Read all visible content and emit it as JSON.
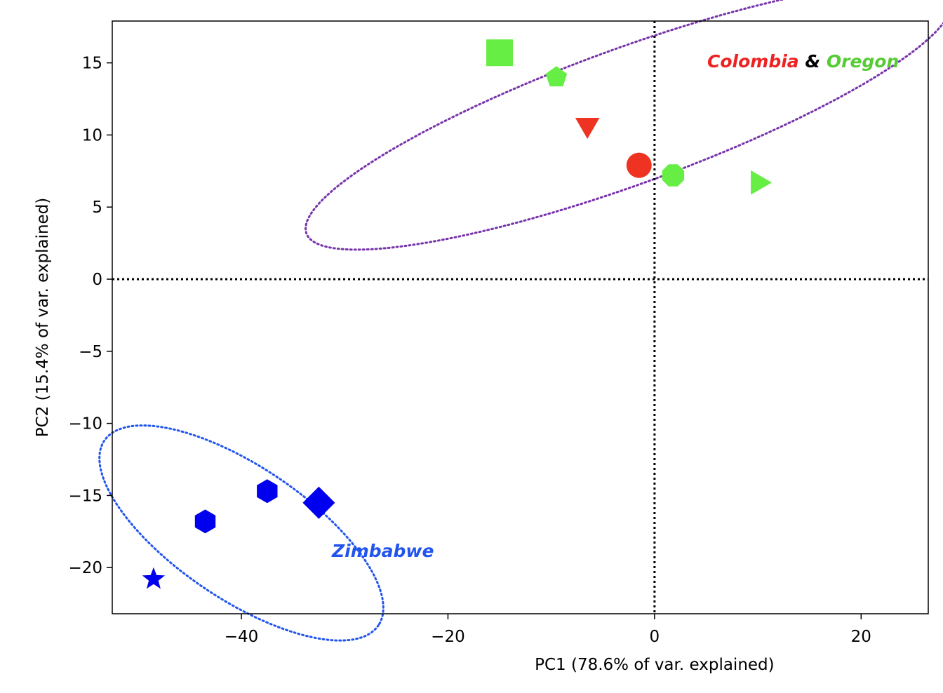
{
  "chart_data": {
    "type": "scatter",
    "title": "",
    "xlabel": "PC1 (78.6% of var. explained)",
    "ylabel": "PC2 (15.4% of var. explained)",
    "xlim": [
      -52.5,
      26.5
    ],
    "ylim": [
      -23.2,
      17.9
    ],
    "x_ticks": [
      -40,
      -20,
      0,
      20
    ],
    "y_ticks": [
      15,
      10,
      5,
      0,
      -5,
      -10,
      -15,
      -20
    ],
    "x_tick_labels": [
      "−40",
      "−20",
      "0",
      "20"
    ],
    "y_tick_labels": [
      "15",
      "10",
      "5",
      "0",
      "−5",
      "−10",
      "−15",
      "−20"
    ],
    "grid": false,
    "reference_lines": [
      {
        "orientation": "vertical",
        "value": 0,
        "style": "dotted",
        "color": "#000000"
      },
      {
        "orientation": "horizontal",
        "value": 0,
        "style": "dotted",
        "color": "#000000"
      }
    ],
    "points": [
      {
        "x": -15.0,
        "y": 15.7,
        "marker": "square",
        "color": "#66ee44"
      },
      {
        "x": -9.5,
        "y": 14.0,
        "marker": "pentagon",
        "color": "#66ee44"
      },
      {
        "x": -6.5,
        "y": 10.7,
        "marker": "triangle-down",
        "color": "#ee3322"
      },
      {
        "x": -1.5,
        "y": 7.9,
        "marker": "circle",
        "color": "#ee3322"
      },
      {
        "x": 1.8,
        "y": 7.2,
        "marker": "octagon",
        "color": "#66ee44"
      },
      {
        "x": 10.0,
        "y": 6.7,
        "marker": "triangle-right",
        "color": "#66ee44"
      },
      {
        "x": -43.5,
        "y": -16.8,
        "marker": "hexagon",
        "color": "#0000ee"
      },
      {
        "x": -37.5,
        "y": -14.7,
        "marker": "hexagon",
        "color": "#0000ee"
      },
      {
        "x": -32.5,
        "y": -15.5,
        "marker": "diamond",
        "color": "#0000ee"
      },
      {
        "x": -48.5,
        "y": -20.8,
        "marker": "star",
        "color": "#0000ee"
      }
    ],
    "cluster_outlines": [
      {
        "label": "Colombia & Oregon",
        "color": "#7733aa",
        "cx": -2.5,
        "cy": 11.3,
        "rx": 33.2,
        "ry": 4.7,
        "angle_deg": 20
      },
      {
        "label": "Zimbabwe",
        "color": "#2255ee",
        "cx": -40.0,
        "cy": -17.6,
        "rx": 16.0,
        "ry": 4.6,
        "angle_deg": -34
      }
    ],
    "annotations": {
      "top": [
        {
          "text": "Colombia",
          "color": "#ee2222"
        },
        {
          "text": " & ",
          "color": "#000000"
        },
        {
          "text": "Oregon",
          "color": "#55cc33"
        }
      ],
      "bottom": {
        "text": "Zimbabwe",
        "color": "#2255ee"
      }
    }
  }
}
